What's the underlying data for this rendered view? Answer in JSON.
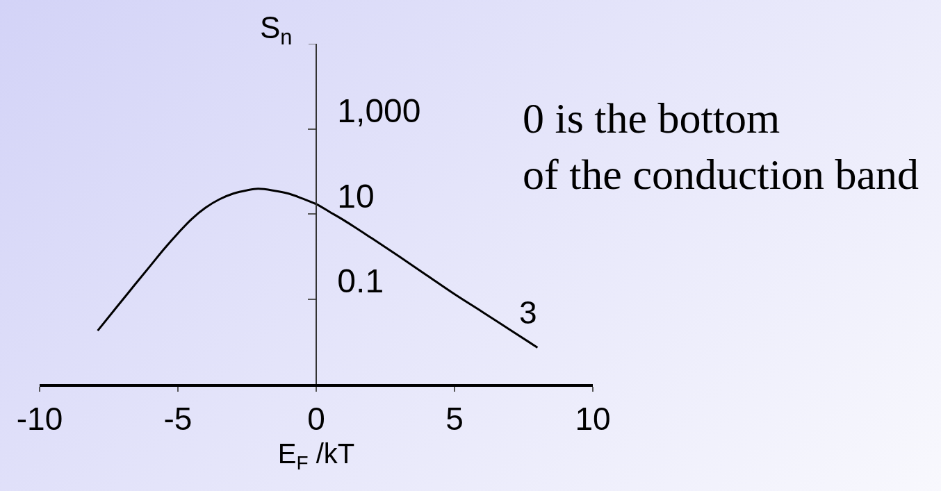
{
  "chart_data": {
    "type": "line",
    "xlabel": "E$_{F}$ /kT",
    "ylabel": "S$_{n}$",
    "x": [
      -7.9,
      -7.2,
      -6.6,
      -6.0,
      -5.5,
      -5.0,
      -4.5,
      -4.0,
      -3.5,
      -3.0,
      -2.5,
      -2.1,
      -1.5,
      -1.0,
      -0.5,
      0,
      0.5,
      1.0,
      2.0,
      3.0,
      4.0,
      5.0,
      6.0,
      7.0,
      8.0
    ],
    "series": [
      {
        "color": "#000000",
        "values": [
          0.018,
          0.066,
          0.2,
          0.6,
          1.5,
          3.5,
          7.6,
          14,
          22,
          30,
          36,
          39,
          35,
          30,
          23,
          17,
          11,
          7.1,
          2.7,
          1.0,
          0.36,
          0.13,
          0.05,
          0.019,
          0.0072
        ]
      }
    ],
    "xlim": [
      -10,
      10
    ],
    "xticks": [
      -10,
      -5,
      0,
      5,
      10
    ],
    "ylim": [
      0.001,
      100000
    ],
    "yticks": [
      {
        "value": 100000,
        "label": null
      },
      {
        "value": 1000,
        "label": "1,000"
      },
      10,
      0.1
    ],
    "log": true,
    "line_style": "solid",
    "annotations": [
      "0 is the bottom\nof the conduction band",
      "3"
    ]
  }
}
